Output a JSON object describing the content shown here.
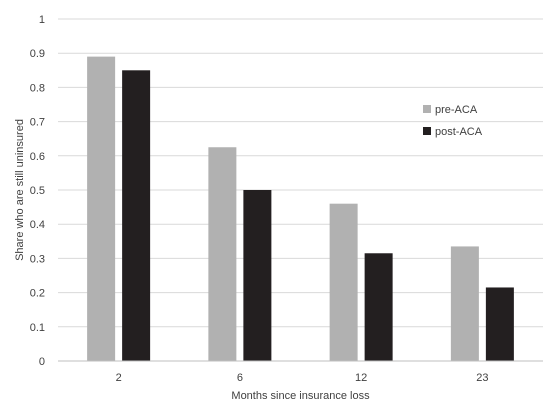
{
  "chart_data": {
    "type": "bar",
    "categories": [
      "2",
      "6",
      "12",
      "23"
    ],
    "series": [
      {
        "name": "pre-ACA",
        "color": "#b1b1b1",
        "values": [
          0.89,
          0.625,
          0.46,
          0.335
        ]
      },
      {
        "name": "post-ACA",
        "color": "#231f20",
        "values": [
          0.85,
          0.5,
          0.315,
          0.215
        ]
      }
    ],
    "xlabel": "Months since insurance loss",
    "ylabel": "Share who are still uninsured",
    "ylim": [
      0,
      1
    ],
    "yticks": [
      "0",
      "0.1",
      "0.2",
      "0.3",
      "0.4",
      "0.5",
      "0.6",
      "0.7",
      "0.8",
      "0.9",
      "1"
    ],
    "grid": true,
    "legend_position": "right"
  }
}
